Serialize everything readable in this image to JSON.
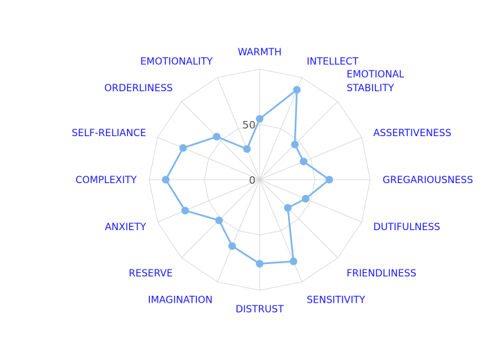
{
  "chart_data": {
    "type": "radar",
    "title": "",
    "axes": [
      [
        "WARMTH"
      ],
      [
        "INTELLECT"
      ],
      [
        "EMOTIONAL",
        "STABILITY"
      ],
      [
        "ASSERTIVENESS"
      ],
      [
        "GREGARIOUSNESS"
      ],
      [
        "DUTIFULNESS"
      ],
      [
        "FRIENDLINESS"
      ],
      [
        "SENSITIVITY"
      ],
      [
        "DISTRUST"
      ],
      [
        "IMAGINATION"
      ],
      [
        "RESERVE"
      ],
      [
        "ANXIETY"
      ],
      [
        "COMPLEXITY"
      ],
      [
        "SELF-RELIANCE"
      ],
      [
        "ORDERLINESS"
      ],
      [
        "EMOTIONALITY"
      ]
    ],
    "values": [
      55,
      88,
      45,
      43,
      63,
      45,
      36,
      80,
      76,
      65,
      52,
      73,
      85,
      75,
      55,
      30
    ],
    "range": [
      0,
      100
    ],
    "tick_labels": [
      "0",
      "50"
    ],
    "colors": {
      "series": "#7cb5ec",
      "grid": "#d9d9d9",
      "axis_label": "#1a1aff",
      "tick_label": "#555555"
    }
  }
}
